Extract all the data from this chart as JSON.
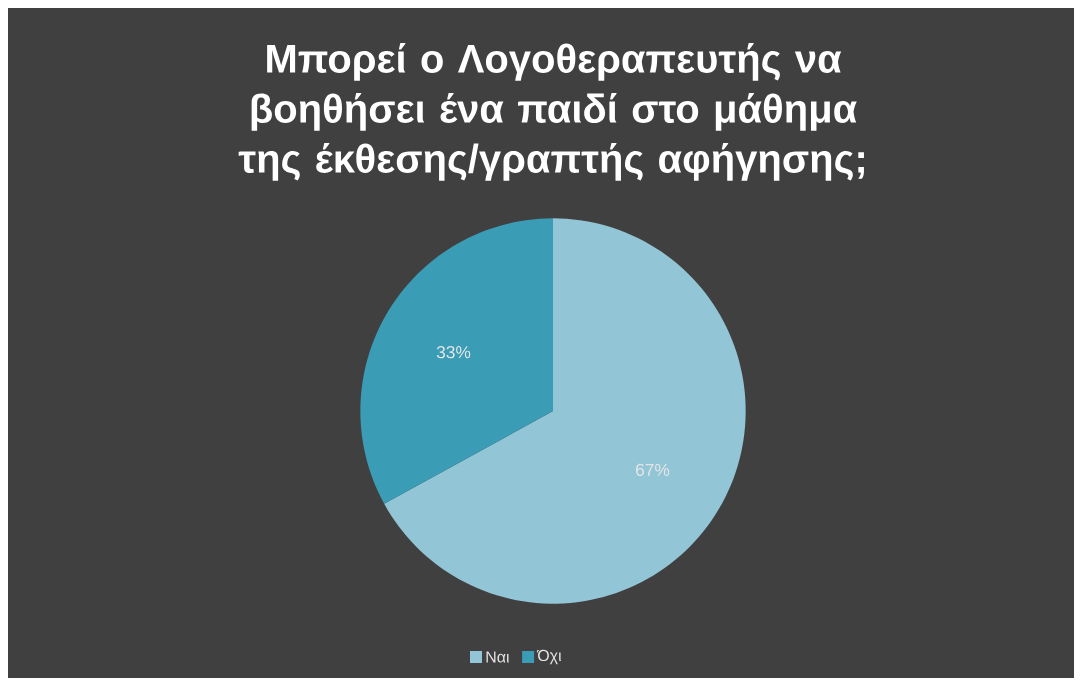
{
  "chart_data": {
    "type": "pie",
    "title": "Μπορεί ο Λογοθεραπευτής να βοηθήσει ένα παιδί στο μάθημα της έκθεσης/γραπτής αφήγησης;",
    "categories": [
      "Ναι",
      "Όχι"
    ],
    "values": [
      67,
      33
    ],
    "colors": [
      "#92c5d6",
      "#3a9cb5"
    ],
    "value_labels": [
      "67%",
      "33%"
    ],
    "legend": "bottom"
  }
}
